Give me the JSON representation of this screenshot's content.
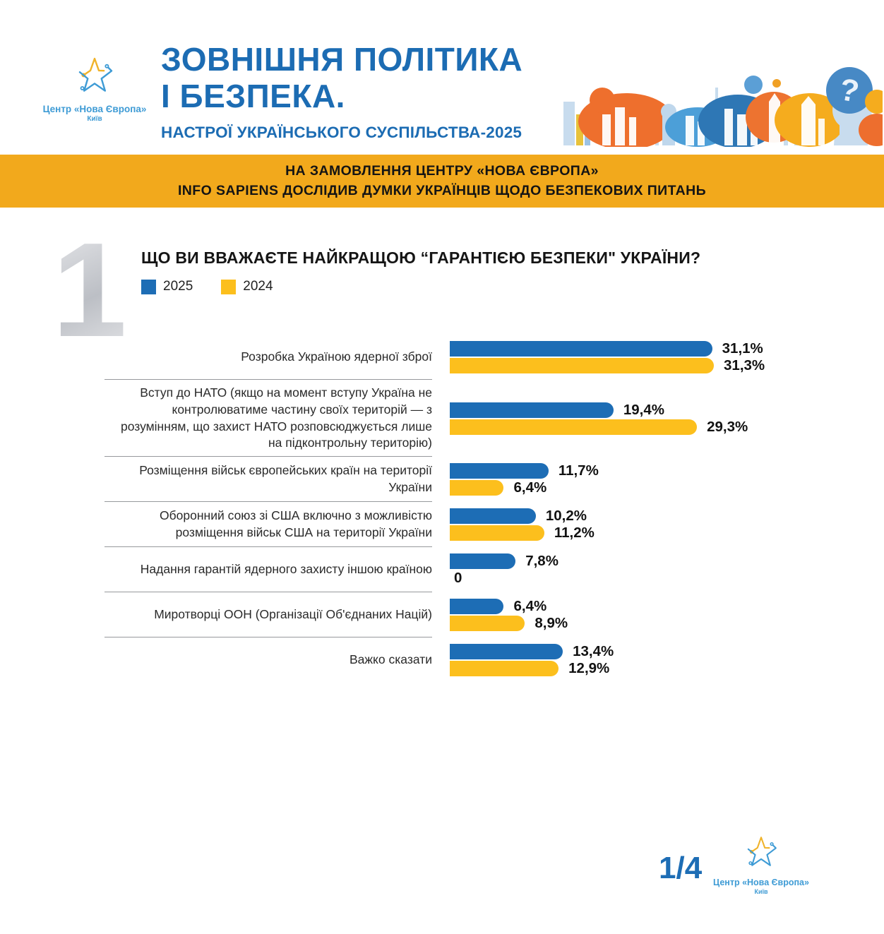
{
  "header": {
    "logo": {
      "name": "Центр «Нова Європа»",
      "city": "Київ"
    },
    "title_line1": "ЗОВНІШНЯ ПОЛІТИКА",
    "title_line2": "І БЕЗПЕКА.",
    "subtitle": "НАСТРОЇ УКРАЇНСЬКОГО СУСПІЛЬСТВА-2025"
  },
  "banner": {
    "line1": "НА ЗАМОВЛЕННЯ ЦЕНТРУ «НОВА ЄВРОПА»",
    "line2": "INFO SAPIENS ДОСЛІДИВ ДУМКИ УКРАЇНЦІВ ЩОДО БЕЗПЕКОВИХ ПИТАНЬ"
  },
  "question": {
    "number": "1",
    "title": "ЩО ВИ ВВАЖАЄТЕ НАЙКРАЩОЮ “ГАРАНТІЄЮ БЕЗПЕКИ\" УКРАЇНИ?",
    "legend": [
      {
        "label": "2025",
        "color": "#1D6DB5"
      },
      {
        "label": "2024",
        "color": "#FCBF1D"
      }
    ]
  },
  "chart_data": {
    "type": "bar",
    "orientation": "horizontal",
    "unit": "%",
    "xlim": [
      0,
      33
    ],
    "grid": false,
    "legend_position": "top-left",
    "categories": [
      "Розробка Україною ядерної зброї",
      "Вступ до НАТО (якщо на момент вступу Україна не контролюватиме частину своїх територій — з розумінням, що захист НАТО розповсюджується лише на підконтрольну територію)",
      "Розміщення військ європейських країн на території України",
      "Оборонний союз зі США включно з можливістю розміщення військ США на території України",
      "Надання гарантій ядерного захисту іншою країною",
      "Миротворці ООН (Організації Об'єднаних Націй)",
      "Важко сказати"
    ],
    "series": [
      {
        "name": "2025",
        "color": "#1D6DB5",
        "values": [
          31.1,
          19.4,
          11.7,
          10.2,
          7.8,
          6.4,
          13.4
        ],
        "labels": [
          "31,1%",
          "19,4%",
          "11,7%",
          "10,2%",
          "7,8%",
          "6,4%",
          "13,4%"
        ]
      },
      {
        "name": "2024",
        "color": "#FCBF1D",
        "values": [
          31.3,
          29.3,
          6.4,
          11.2,
          0,
          8.9,
          12.9
        ],
        "labels": [
          "31,3%",
          "29,3%",
          "6,4%",
          "11,2%",
          "0",
          "8,9%",
          "12,9%"
        ]
      }
    ]
  },
  "footer": {
    "page": "1/4",
    "logo": {
      "name": "Центр «Нова Європа»",
      "city": "Київ"
    }
  },
  "colors": {
    "primary_blue": "#1D6DB5",
    "title_blue": "#1C6CB3",
    "light_blue": "#3E9BD5",
    "bar_yellow": "#FCBF1D",
    "banner_orange": "#F2A91C",
    "divider_gray": "#97999C",
    "text_dark": "#151515"
  }
}
